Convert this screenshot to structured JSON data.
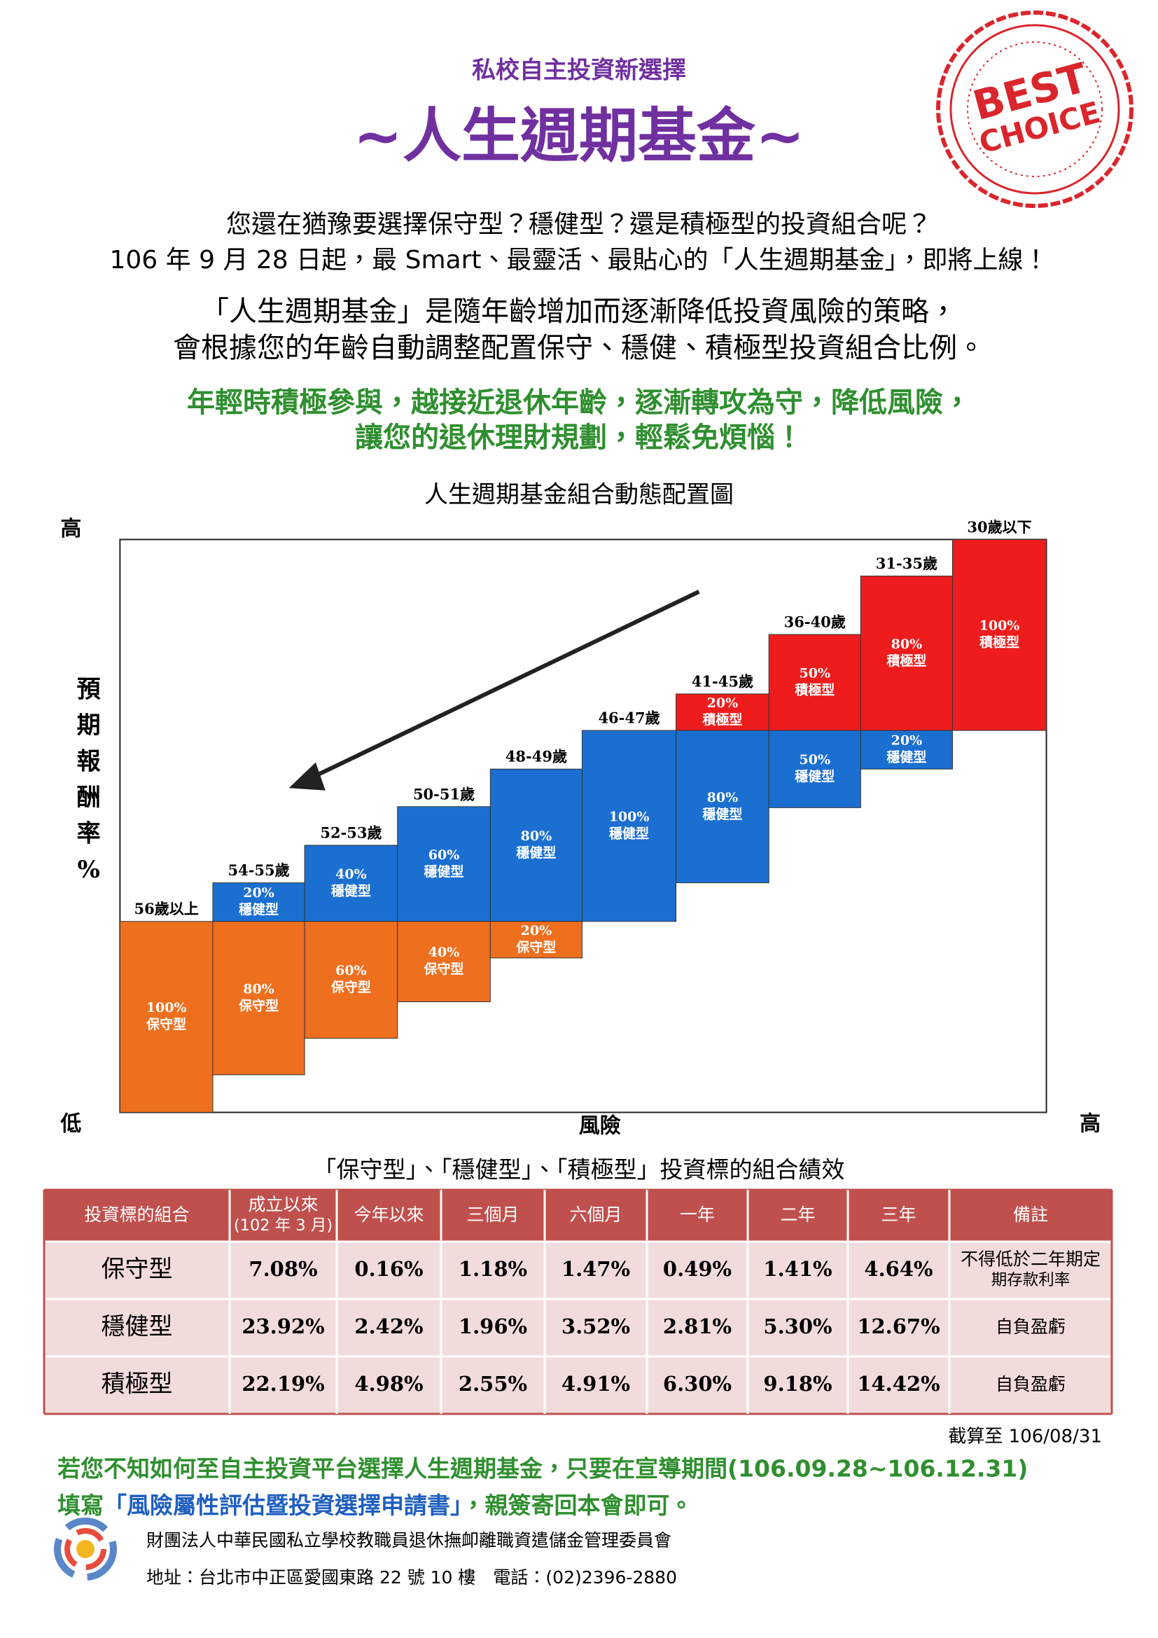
{
  "header": {
    "subtitle": "私校自主投資新選擇",
    "title": "~人生週期基金~",
    "stamp": [
      "BEST",
      "CHOICE"
    ]
  },
  "intro": {
    "lines": [
      "您還在猶豫要選擇保守型？穩健型？還是積極型的投資組合呢？",
      "106 年 9 月 28 日起，最 Smart、最靈活、最貼心的「人生週期基金」，即將上線！"
    ]
  },
  "description": {
    "lines": [
      "「人生週期基金」是隨年齡增加而逐漸降低投資風險的策略，",
      "會根據您的年齡自動調整配置保守、穩健、積極型投資組合比例。"
    ]
  },
  "highlight": {
    "lines": [
      "年輕時積極參與，越接近退休年齡，逐漸轉攻為守，降低風險，",
      "讓您的退休理財規劃，輕鬆免煩惱！"
    ]
  },
  "diagram": {
    "title": "人生週期基金組合動態配置圖",
    "y_label": [
      "預",
      "期",
      "報",
      "酬",
      "率",
      "%"
    ],
    "y_high": "高",
    "y_low": "低",
    "x_label": "風險",
    "x_high": "高",
    "columns": [
      {
        "age": "56歲以上",
        "segments": [
          {
            "percent": "100%",
            "type": "保守型"
          }
        ]
      },
      {
        "age": "54-55歲",
        "segments": [
          {
            "percent": "20%",
            "type": "穩健型"
          },
          {
            "percent": "80%",
            "type": "保守型"
          }
        ]
      },
      {
        "age": "52-53歲",
        "segments": [
          {
            "percent": "40%",
            "type": "穩健型"
          },
          {
            "percent": "60%",
            "type": "保守型"
          }
        ]
      },
      {
        "age": "50-51歲",
        "segments": [
          {
            "percent": "60%",
            "type": "穩健型"
          },
          {
            "percent": "40%",
            "type": "保守型"
          }
        ]
      },
      {
        "age": "48-49歲",
        "segments": [
          {
            "percent": "80%",
            "type": "穩健型"
          },
          {
            "percent": "20%",
            "type": "保守型"
          }
        ]
      },
      {
        "age": "46-47歲",
        "segments": [
          {
            "percent": "100%",
            "type": "穩健型"
          }
        ]
      },
      {
        "age": "41-45歲",
        "segments": [
          {
            "percent": "20%",
            "type": "積極型"
          },
          {
            "percent": "80%",
            "type": "穩健型"
          }
        ]
      },
      {
        "age": "36-40歲",
        "segments": [
          {
            "percent": "50%",
            "type": "積極型"
          },
          {
            "percent": "50%",
            "type": "穩健型"
          }
        ]
      },
      {
        "age": "31-35歲",
        "segments": [
          {
            "percent": "80%",
            "type": "積極型"
          },
          {
            "percent": "20%",
            "type": "穩健型"
          }
        ]
      },
      {
        "age": "30歲以下",
        "segments": [
          {
            "percent": "100%",
            "type": "積極型"
          }
        ]
      }
    ]
  },
  "table": {
    "title": "「保守型」、「穩健型」、「積極型」投資標的組合績效",
    "headers": [
      "投資標的組合",
      [
        "成立以來",
        "(102 年 3 月)"
      ],
      "今年以來",
      "三個月",
      "六個月",
      "一年",
      "二年",
      "三年",
      "備註"
    ],
    "rows": [
      [
        "保守型",
        "7.08%",
        "0.16%",
        "1.18%",
        "1.47%",
        "0.49%",
        "1.41%",
        "4.64%",
        [
          "不得低於二年期定",
          "期存款利率"
        ]
      ],
      [
        "穩健型",
        "23.92%",
        "2.42%",
        "1.96%",
        "3.52%",
        "2.81%",
        "5.30%",
        "12.67%",
        "自負盈虧"
      ],
      [
        "積極型",
        "22.19%",
        "4.98%",
        "2.55%",
        "4.91%",
        "6.30%",
        "9.18%",
        "14.42%",
        "自負盈虧"
      ]
    ],
    "as_of": "截算至 106/08/31"
  },
  "notice": {
    "line1": "若您不知如何至自主投資平台選擇人生週期基金，只要在宣導期間(106.09.28~106.12.31)",
    "line2_pre": "填寫",
    "line2_form": "「風險屬性評估暨投資選擇申請書」",
    "line2_post": "，親簽寄回本會即可。"
  },
  "footer": {
    "organization": "財團法人中華民國私立學校教職員退休撫卹離職資遣儲金管理委員會",
    "address": "地址：台北市中正區愛國東路 22 號 10 樓　電話：(02)2396-2880"
  }
}
